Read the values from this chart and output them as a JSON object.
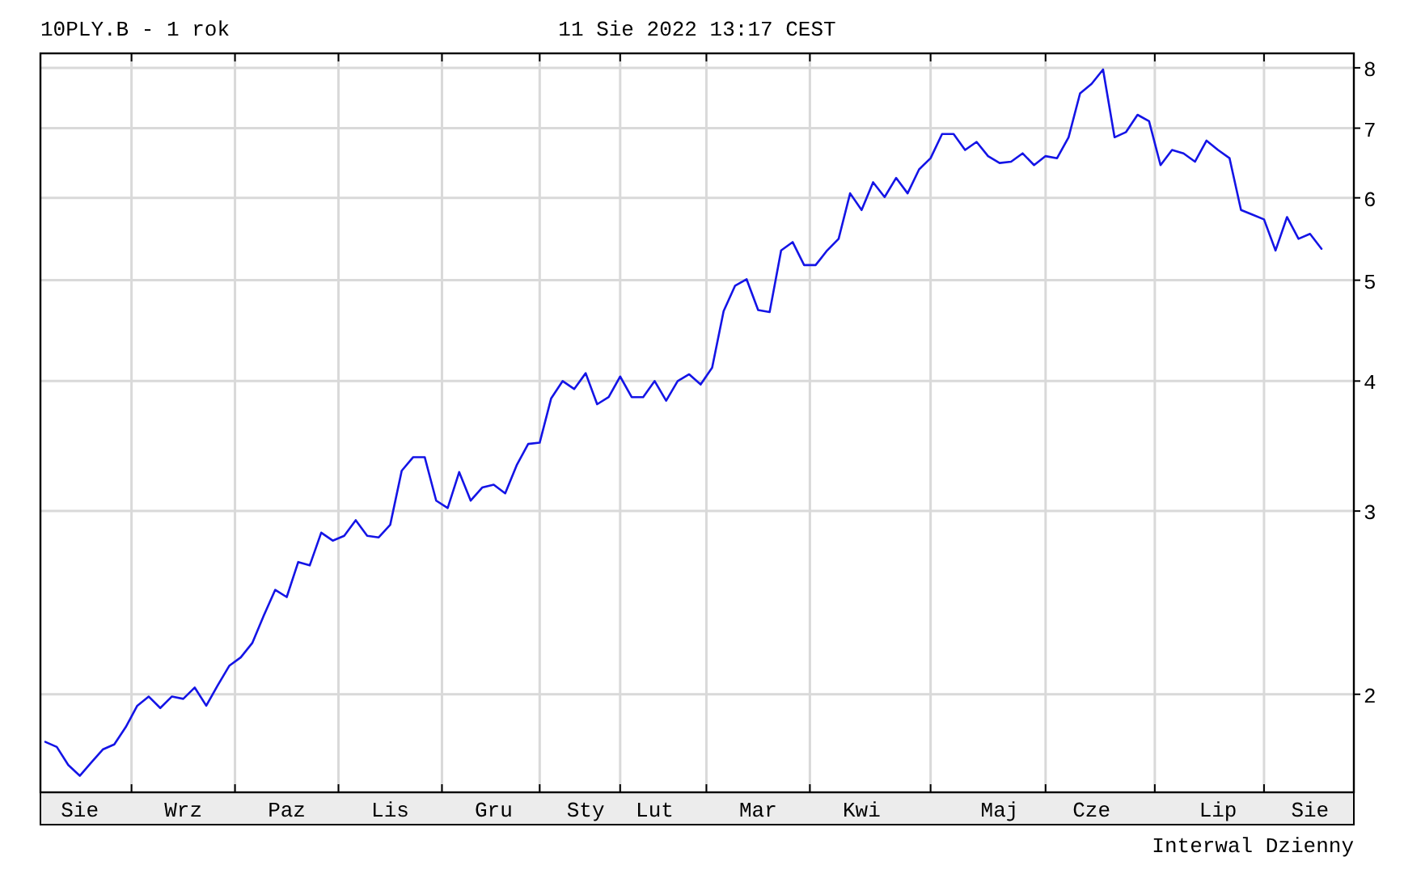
{
  "chart_data": {
    "type": "line",
    "title": "10PLY.B - 1 rok",
    "annotations": [
      "11 Sie 2022 13:17 CEST",
      "Interwal Dzienny"
    ],
    "log": true,
    "grid": true,
    "marker": "none",
    "line_style": "solid",
    "categories": [
      null,
      null,
      null,
      "Sie",
      null,
      null,
      null,
      null,
      null,
      null,
      null,
      null,
      "Wrz",
      null,
      null,
      null,
      null,
      null,
      null,
      null,
      null,
      "Paz",
      null,
      null,
      null,
      null,
      null,
      null,
      null,
      null,
      "Lis",
      null,
      null,
      null,
      null,
      null,
      null,
      null,
      null,
      "Gru",
      null,
      null,
      null,
      null,
      null,
      null,
      null,
      "Sty",
      null,
      null,
      null,
      null,
      null,
      "Lut",
      null,
      null,
      null,
      null,
      null,
      null,
      null,
      null,
      "Mar",
      null,
      null,
      null,
      null,
      null,
      null,
      null,
      null,
      "Kwi",
      null,
      null,
      null,
      null,
      null,
      null,
      null,
      null,
      null,
      null,
      null,
      "Maj",
      null,
      null,
      null,
      null,
      null,
      null,
      null,
      "Cze",
      null,
      null,
      null,
      null,
      null,
      null,
      null,
      null,
      null,
      null,
      "Lip",
      null,
      null,
      null,
      null,
      null,
      null,
      null,
      "Sie",
      null
    ],
    "ylim": [
      1.61,
      8.26
    ],
    "yticks": [
      2,
      3,
      4,
      5,
      6,
      7,
      8
    ],
    "series": [
      {
        "color": "#1414e6",
        "values": [
          1.8,
          1.78,
          1.71,
          1.67,
          1.72,
          1.77,
          1.79,
          1.86,
          1.95,
          1.99,
          1.94,
          1.99,
          1.98,
          2.03,
          1.95,
          2.04,
          2.13,
          2.17,
          2.24,
          2.38,
          2.52,
          2.48,
          2.68,
          2.66,
          2.86,
          2.81,
          2.84,
          2.94,
          2.84,
          2.83,
          2.91,
          3.28,
          3.38,
          3.38,
          3.07,
          3.02,
          3.27,
          3.07,
          3.16,
          3.18,
          3.12,
          3.32,
          3.48,
          3.49,
          3.85,
          4.0,
          3.93,
          4.07,
          3.8,
          3.86,
          4.04,
          3.86,
          3.86,
          4.0,
          3.83,
          4.0,
          4.06,
          3.97,
          4.12,
          4.67,
          4.94,
          5.01,
          4.68,
          4.66,
          5.34,
          5.44,
          5.17,
          5.17,
          5.34,
          5.48,
          6.06,
          5.84,
          6.21,
          6.01,
          6.27,
          6.06,
          6.39,
          6.55,
          6.91,
          6.91,
          6.67,
          6.79,
          6.58,
          6.48,
          6.5,
          6.62,
          6.45,
          6.58,
          6.55,
          6.86,
          7.56,
          7.72,
          7.97,
          6.86,
          6.94,
          7.21,
          7.11,
          6.45,
          6.67,
          6.62,
          6.5,
          6.81,
          6.67,
          6.55,
          5.84,
          5.78,
          5.72,
          5.34,
          5.75,
          5.48,
          5.54,
          5.36
        ]
      }
    ]
  }
}
